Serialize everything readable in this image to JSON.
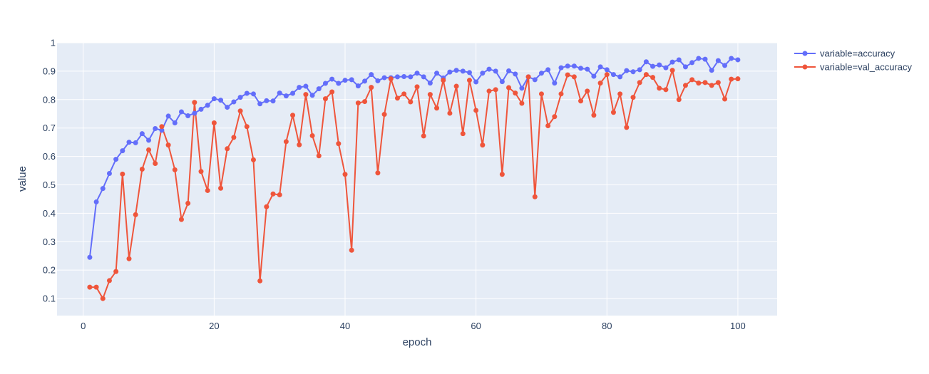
{
  "chart_data": {
    "type": "line",
    "mode": "lines+markers",
    "xlabel": "epoch",
    "ylabel": "value",
    "xlim": [
      -4,
      106
    ],
    "ylim": [
      0.04,
      1.0
    ],
    "xticks": [
      0,
      20,
      40,
      60,
      80,
      100
    ],
    "yticks": [
      0.1,
      0.2,
      0.3,
      0.4,
      0.5,
      0.6,
      0.7,
      0.8,
      0.9,
      1
    ],
    "grid": true,
    "legend_position": "top-right",
    "plot_background": "#e5ecf6",
    "x": [
      1,
      2,
      3,
      4,
      5,
      6,
      7,
      8,
      9,
      10,
      11,
      12,
      13,
      14,
      15,
      16,
      17,
      18,
      19,
      20,
      21,
      22,
      23,
      24,
      25,
      26,
      27,
      28,
      29,
      30,
      31,
      32,
      33,
      34,
      35,
      36,
      37,
      38,
      39,
      40,
      41,
      42,
      43,
      44,
      45,
      46,
      47,
      48,
      49,
      50,
      51,
      52,
      53,
      54,
      55,
      56,
      57,
      58,
      59,
      60,
      61,
      62,
      63,
      64,
      65,
      66,
      67,
      68,
      69,
      70,
      71,
      72,
      73,
      74,
      75,
      76,
      77,
      78,
      79,
      80,
      81,
      82,
      83,
      84,
      85,
      86,
      87,
      88,
      89,
      90,
      91,
      92,
      93,
      94,
      95,
      96,
      97,
      98,
      99,
      100
    ],
    "series": [
      {
        "name": "variable=accuracy",
        "color": "#636efa",
        "values": [
          0.245,
          0.44,
          0.487,
          0.54,
          0.59,
          0.62,
          0.65,
          0.648,
          0.68,
          0.657,
          0.698,
          0.692,
          0.742,
          0.718,
          0.757,
          0.743,
          0.752,
          0.766,
          0.78,
          0.803,
          0.798,
          0.773,
          0.792,
          0.808,
          0.822,
          0.82,
          0.785,
          0.796,
          0.795,
          0.823,
          0.813,
          0.822,
          0.843,
          0.847,
          0.815,
          0.838,
          0.857,
          0.872,
          0.857,
          0.868,
          0.87,
          0.848,
          0.865,
          0.888,
          0.866,
          0.877,
          0.877,
          0.88,
          0.881,
          0.88,
          0.893,
          0.88,
          0.858,
          0.893,
          0.876,
          0.897,
          0.903,
          0.9,
          0.895,
          0.862,
          0.893,
          0.907,
          0.9,
          0.863,
          0.901,
          0.89,
          0.84,
          0.88,
          0.87,
          0.893,
          0.905,
          0.858,
          0.912,
          0.918,
          0.918,
          0.91,
          0.907,
          0.882,
          0.915,
          0.905,
          0.888,
          0.88,
          0.902,
          0.898,
          0.905,
          0.933,
          0.917,
          0.922,
          0.912,
          0.932,
          0.94,
          0.915,
          0.93,
          0.945,
          0.942,
          0.903,
          0.937,
          0.92,
          0.945,
          0.94
        ]
      },
      {
        "name": "variable=val_accuracy",
        "color": "#ef553b",
        "values": [
          0.14,
          0.14,
          0.1,
          0.163,
          0.195,
          0.538,
          0.24,
          0.395,
          0.555,
          0.623,
          0.575,
          0.705,
          0.64,
          0.553,
          0.378,
          0.435,
          0.79,
          0.547,
          0.48,
          0.718,
          0.488,
          0.627,
          0.667,
          0.76,
          0.705,
          0.588,
          0.162,
          0.423,
          0.468,
          0.465,
          0.652,
          0.745,
          0.641,
          0.818,
          0.673,
          0.602,
          0.803,
          0.827,
          0.645,
          0.537,
          0.27,
          0.788,
          0.793,
          0.843,
          0.542,
          0.748,
          0.873,
          0.805,
          0.82,
          0.792,
          0.845,
          0.672,
          0.818,
          0.77,
          0.868,
          0.752,
          0.847,
          0.68,
          0.868,
          0.762,
          0.64,
          0.83,
          0.835,
          0.537,
          0.842,
          0.823,
          0.787,
          0.88,
          0.458,
          0.82,
          0.708,
          0.74,
          0.82,
          0.887,
          0.88,
          0.795,
          0.83,
          0.745,
          0.858,
          0.888,
          0.755,
          0.82,
          0.702,
          0.808,
          0.86,
          0.888,
          0.878,
          0.84,
          0.835,
          0.903,
          0.8,
          0.85,
          0.87,
          0.858,
          0.86,
          0.85,
          0.86,
          0.802,
          0.872,
          0.873
        ]
      }
    ]
  }
}
